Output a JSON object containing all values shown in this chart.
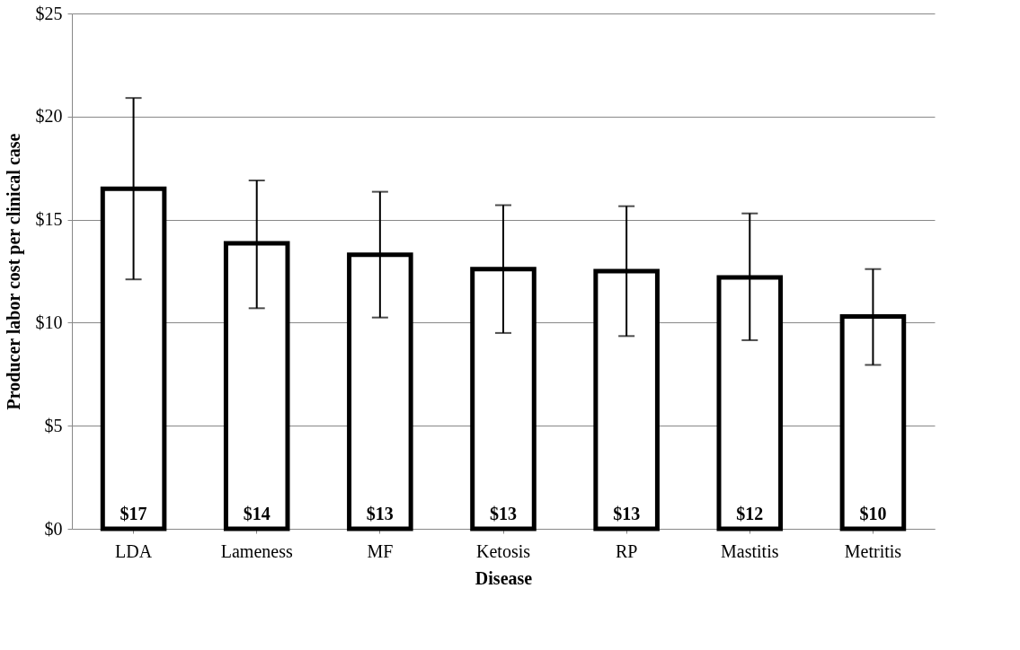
{
  "chart_data": {
    "type": "bar",
    "xlabel": "Disease",
    "ylabel": "Producer labor cost per clinical case",
    "categories": [
      "LDA",
      "Lameness",
      "MF",
      "Ketosis",
      "RP",
      "Mastitis",
      "Metritis"
    ],
    "values": [
      16.5,
      13.85,
      13.3,
      12.6,
      12.5,
      12.2,
      10.3
    ],
    "errors": [
      [
        12.1,
        20.9
      ],
      [
        10.7,
        16.9
      ],
      [
        10.25,
        16.35
      ],
      [
        9.5,
        15.7
      ],
      [
        9.35,
        15.65
      ],
      [
        9.15,
        15.3
      ],
      [
        7.95,
        12.6
      ]
    ],
    "value_labels": [
      "$17",
      "$14",
      "$13",
      "$13",
      "$13",
      "$12",
      "$10"
    ],
    "color": "#ffffff",
    "ylim": [
      0,
      25
    ],
    "yticks": [
      {
        "value": 0,
        "label": "$0"
      },
      {
        "value": 5,
        "label": "$5"
      },
      {
        "value": 10,
        "label": "$10"
      },
      {
        "value": 15,
        "label": "$15"
      },
      {
        "value": 20,
        "label": "$20"
      },
      {
        "value": 25,
        "label": "$25"
      }
    ],
    "grid": "y"
  }
}
